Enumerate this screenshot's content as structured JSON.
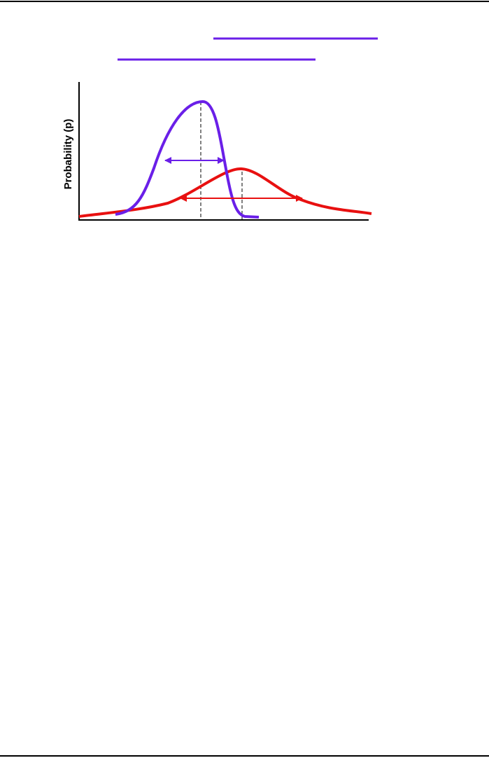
{
  "figure": {
    "y_axis_label": "Probability (p)"
  }
}
